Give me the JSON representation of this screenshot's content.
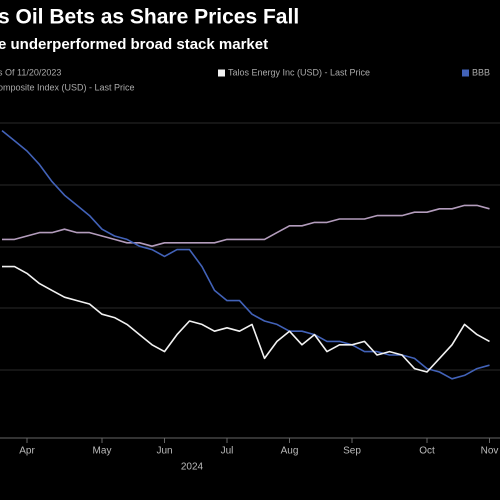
{
  "chart_data": {
    "type": "line",
    "title": "s Oil Bets as Share Prices Fall",
    "subtitle": "e underperformed broad stack market",
    "note": "s Of 11/20/2023",
    "x_label": "2024",
    "categories": [
      null,
      null,
      "Apr",
      null,
      null,
      null,
      null,
      null,
      "May",
      null,
      null,
      null,
      null,
      "Jun",
      null,
      null,
      null,
      null,
      "Jul",
      null,
      null,
      null,
      null,
      "Aug",
      null,
      null,
      null,
      null,
      "Sep",
      null,
      null,
      null,
      null,
      null,
      "Oct",
      null,
      null,
      null,
      null,
      "Nov"
    ],
    "ylim": [
      0,
      100
    ],
    "grid": true,
    "series": [
      {
        "name": "Talos Energy Inc (USD) - Last Price",
        "color": "#f2f2f2",
        "values": [
          51,
          51,
          49,
          46,
          44,
          42,
          41,
          40,
          37,
          36,
          34,
          31,
          28,
          26,
          31,
          35,
          34,
          32,
          33,
          32,
          34,
          24,
          29,
          32,
          28,
          31,
          26,
          28,
          28,
          29,
          25,
          26,
          25,
          21,
          20,
          24,
          28,
          34,
          31,
          29
        ]
      },
      {
        "name": "omposite Index (USD) - Last Price",
        "color": "#b39cbc",
        "values": [
          59,
          59,
          60,
          61,
          61,
          62,
          61,
          61,
          60,
          59,
          58,
          58,
          57,
          58,
          58,
          58,
          58,
          58,
          59,
          59,
          59,
          59,
          61,
          63,
          63,
          64,
          64,
          65,
          65,
          65,
          66,
          66,
          66,
          67,
          67,
          68,
          68,
          69,
          69,
          68
        ]
      },
      {
        "name": "BBB",
        "color": "#4262b8",
        "values": [
          91,
          88,
          85,
          81,
          76,
          72,
          69,
          66,
          62,
          60,
          59,
          57,
          56,
          54,
          56,
          56,
          51,
          44,
          41,
          41,
          37,
          35,
          34,
          32,
          32,
          31,
          29,
          29,
          28,
          26,
          26,
          25,
          25,
          24,
          21,
          20,
          18,
          19,
          21,
          22
        ]
      }
    ]
  }
}
